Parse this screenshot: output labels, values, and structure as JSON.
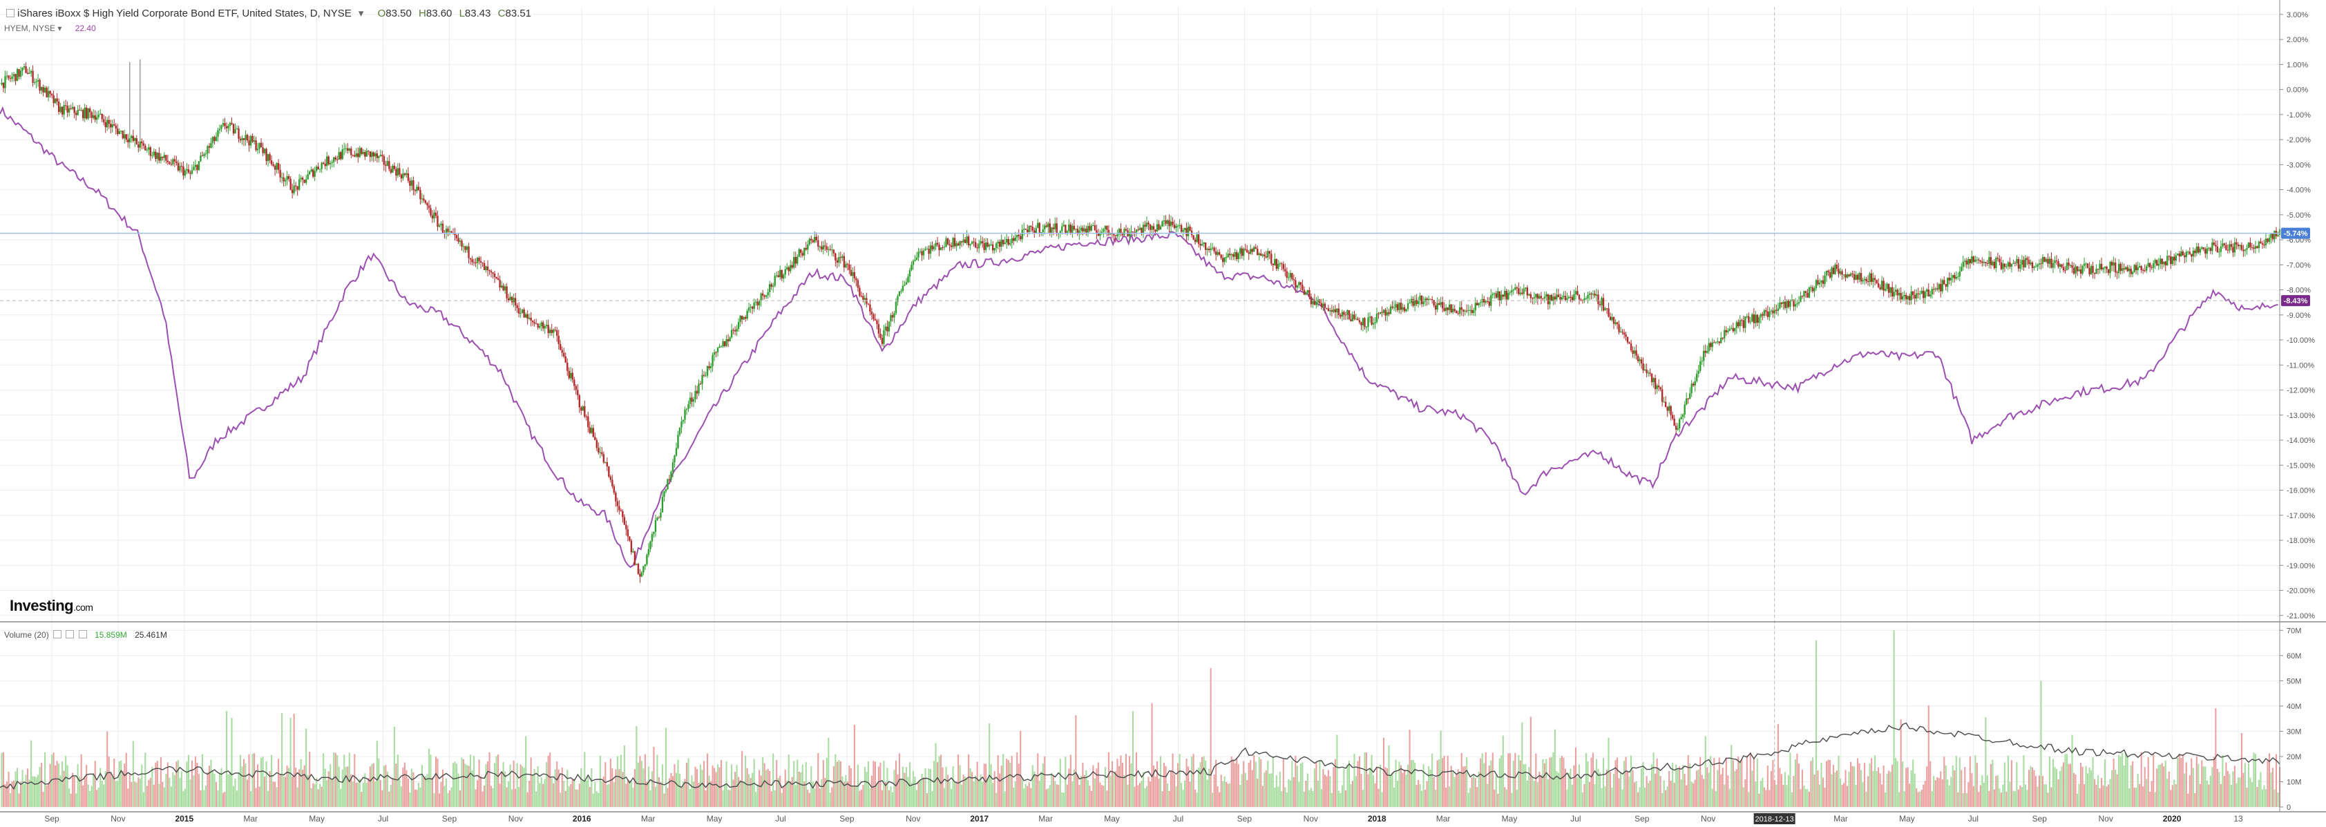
{
  "header": {
    "title": "iShares iBoxx $ High Yield Corporate Bond ETF, United States, D, NYSE",
    "open_label": "O",
    "open": "83.50",
    "high_label": "H",
    "high": "83.60",
    "low_label": "L",
    "low": "83.43",
    "close_label": "C",
    "close": "83.51"
  },
  "compare": {
    "symbol": "HYEM, NYSE",
    "value": "22.40"
  },
  "volume_legend": {
    "label": "Volume (20)",
    "value_a": "15.859M",
    "value_b": "25.461M"
  },
  "logo": {
    "name": "Investing",
    "suffix": ".com"
  },
  "colors": {
    "up": "#2e9e2e",
    "down": "#b22a2a",
    "compare_line": "#9c4fb0",
    "vol_up": "#a8dca0",
    "vol_down": "#eba0a0",
    "badge_blue": "#4a7fd8",
    "badge_purple": "#7a2a8a"
  },
  "chart_data": [
    {
      "type": "line",
      "name": "price-panel",
      "x_tick_labels": [
        "Sep",
        "Nov",
        "2015",
        "Mar",
        "May",
        "Jul",
        "Sep",
        "Nov",
        "2016",
        "Mar",
        "May",
        "Jul",
        "Sep",
        "Nov",
        "2017",
        "Mar",
        "May",
        "Jul",
        "Sep",
        "Nov",
        "2018",
        "Mar",
        "May",
        "Jul",
        "Sep",
        "Nov",
        "2018-12-13",
        "Mar",
        "May",
        "Jul",
        "Sep",
        "Nov",
        "2020",
        "13"
      ],
      "y_tick_labels": [
        "3.00%",
        "2.00%",
        "1.00%",
        "0.00%",
        "-1.00%",
        "-2.00%",
        "-3.00%",
        "-4.00%",
        "-5.00%",
        "-6.00%",
        "-7.00%",
        "-8.00%",
        "-9.00%",
        "-10.00%",
        "-11.00%",
        "-12.00%",
        "-13.00%",
        "-14.00%",
        "-15.00%",
        "-16.00%",
        "-17.00%",
        "-18.00%",
        "-19.00%",
        "-20.00%",
        "-21.00%"
      ],
      "ylim": [
        -21.2,
        3.3
      ],
      "crosshair_date": "2018-12-13",
      "series": [
        {
          "values_time": [
            0,
            15,
            35,
            55,
            80,
            110,
            130,
            150,
            170,
            185,
            200,
            215,
            235,
            255,
            275,
            290,
            305,
            320,
            335,
            350,
            370,
            385,
            395,
            410,
            430,
            450,
            470,
            490,
            510,
            530,
            555,
            575,
            600,
            625,
            650,
            680,
            705,
            730,
            760,
            790,
            820,
            845,
            865,
            880,
            895,
            910,
            925,
            940,
            955,
            970,
            985,
            1000,
            1020,
            1040,
            1060,
            1080,
            1100,
            1120,
            1140,
            1160,
            1180,
            1200,
            1220,
            1240,
            1260,
            1280,
            1300,
            1318
          ],
          "values": [
            0.2,
            0.8,
            -0.8,
            -1.0,
            -2.2,
            -3.4,
            -1.4,
            -2.3,
            -4.0,
            -3.0,
            -2.5,
            -2.6,
            -3.5,
            -5.5,
            -6.8,
            -7.9,
            -9.2,
            -9.6,
            -12.5,
            -15.0,
            -19.5,
            -16.0,
            -13.0,
            -11.0,
            -9.0,
            -7.5,
            -6.0,
            -7.0,
            -10.0,
            -6.5,
            -6.0,
            -6.3,
            -5.5,
            -5.6,
            -5.7,
            -5.3,
            -6.7,
            -6.4,
            -8.5,
            -9.3,
            -8.4,
            -8.9,
            -8.3,
            -8.0,
            -8.4,
            -8.2,
            -8.4,
            -10.0,
            -11.5,
            -13.5,
            -10.5,
            -9.5,
            -9.0,
            -8.4,
            -7.2,
            -7.5,
            -8.3,
            -8.0,
            -6.8,
            -7.0,
            -6.9,
            -7.2,
            -7.1,
            -7.2,
            -6.6,
            -6.3,
            -6.3,
            -5.7
          ]
        },
        {
          "values_time": [
            0,
            15,
            35,
            55,
            80,
            95,
            110,
            125,
            150,
            175,
            200,
            215,
            235,
            255,
            275,
            290,
            305,
            320,
            335,
            350,
            365,
            380,
            395,
            410,
            430,
            450,
            470,
            490,
            510,
            530,
            555,
            575,
            600,
            625,
            650,
            680,
            705,
            730,
            760,
            790,
            820,
            845,
            865,
            880,
            895,
            910,
            925,
            940,
            955,
            970,
            985,
            1000,
            1020,
            1040,
            1060,
            1080,
            1100,
            1120,
            1140,
            1160,
            1180,
            1200,
            1220,
            1240,
            1260,
            1280,
            1300,
            1318
          ],
          "values": [
            -0.8,
            -1.7,
            -3.0,
            -4.0,
            -5.8,
            -9.0,
            -15.7,
            -14.0,
            -12.8,
            -11.5,
            -8.0,
            -6.6,
            -8.5,
            -9.0,
            -10.2,
            -11.3,
            -13.5,
            -15.2,
            -16.5,
            -17.0,
            -19.2,
            -16.5,
            -14.8,
            -13.0,
            -11.0,
            -9.0,
            -7.3,
            -7.6,
            -10.5,
            -8.5,
            -7.0,
            -6.9,
            -6.5,
            -6.1,
            -6.0,
            -5.8,
            -7.4,
            -7.5,
            -8.3,
            -11.5,
            -12.7,
            -13.0,
            -14.2,
            -16.2,
            -15.2,
            -14.8,
            -14.5,
            -15.3,
            -15.8,
            -13.7,
            -12.7,
            -11.5,
            -11.7,
            -11.9,
            -11.0,
            -10.5,
            -10.7,
            -10.5,
            -14.0,
            -13.1,
            -12.6,
            -12.1,
            -11.9,
            -11.6,
            -9.7,
            -8.0,
            -8.9,
            -8.4
          ]
        }
      ],
      "markers": [
        {
          "label": "-5.74%",
          "value": -5.74
        },
        {
          "label": "-8.43%",
          "value": -8.43
        }
      ]
    },
    {
      "type": "bar",
      "name": "volume-panel",
      "y_tick_labels": [
        "70M",
        "60M",
        "50M",
        "40M",
        "30M",
        "20M",
        "10M",
        "0"
      ],
      "ylim": [
        0,
        72
      ],
      "baseline": 15,
      "ma_time": [
        0,
        100,
        200,
        300,
        400,
        500,
        600,
        700,
        720,
        800,
        900,
        1000,
        1050,
        1100,
        1200,
        1300,
        1318
      ],
      "ma_values": [
        8,
        15,
        11,
        13,
        9,
        9,
        12,
        14,
        22,
        14,
        12,
        18,
        26,
        32,
        22,
        19,
        18
      ],
      "spikes": [
        {
          "t": 700,
          "v": 55
        },
        {
          "t": 1050,
          "v": 66
        },
        {
          "t": 1095,
          "v": 70
        },
        {
          "t": 1180,
          "v": 50
        }
      ]
    }
  ]
}
